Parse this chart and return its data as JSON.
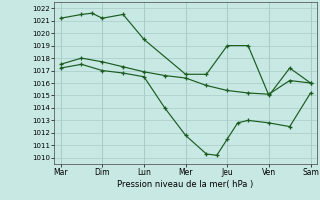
{
  "xlabel": "Pression niveau de la mer( hPa )",
  "ylim_min": 1009.5,
  "ylim_max": 1022.5,
  "yticks": [
    1010,
    1011,
    1012,
    1013,
    1014,
    1015,
    1016,
    1017,
    1018,
    1019,
    1020,
    1021,
    1022
  ],
  "xtick_labels": [
    "Mar",
    "Dim",
    "Lun",
    "Mer",
    "Jeu",
    "Ven",
    "Sam"
  ],
  "bg_color": "#c8e8e4",
  "grid_color": "#a8ccc8",
  "line_color": "#1a5c20",
  "line1_x": [
    0,
    0.5,
    0.75,
    1.0,
    1.5,
    2.0,
    3.0,
    3.5,
    4.0,
    4.5,
    5.0,
    5.5,
    6.0
  ],
  "line1_y": [
    1021.2,
    1021.5,
    1021.6,
    1021.2,
    1021.5,
    1019.5,
    1016.7,
    1016.7,
    1019.0,
    1019.0,
    1015.0,
    1017.2,
    1016.0
  ],
  "line2_x": [
    0,
    0.5,
    1.0,
    1.5,
    2.0,
    2.5,
    3.0,
    3.5,
    4.0,
    4.5,
    5.0,
    5.5,
    6.0
  ],
  "line2_y": [
    1017.5,
    1018.0,
    1017.7,
    1017.3,
    1016.9,
    1016.6,
    1016.4,
    1015.8,
    1015.4,
    1015.2,
    1015.1,
    1016.2,
    1016.0
  ],
  "line3_x": [
    0,
    0.5,
    1.0,
    1.5,
    2.0,
    2.5,
    3.0,
    3.5,
    3.75,
    4.0,
    4.25,
    4.5,
    5.0,
    5.5,
    6.0
  ],
  "line3_y": [
    1017.2,
    1017.5,
    1017.0,
    1016.8,
    1016.5,
    1014.0,
    1011.8,
    1010.3,
    1010.2,
    1011.5,
    1012.8,
    1013.0,
    1012.8,
    1012.5,
    1015.2
  ]
}
